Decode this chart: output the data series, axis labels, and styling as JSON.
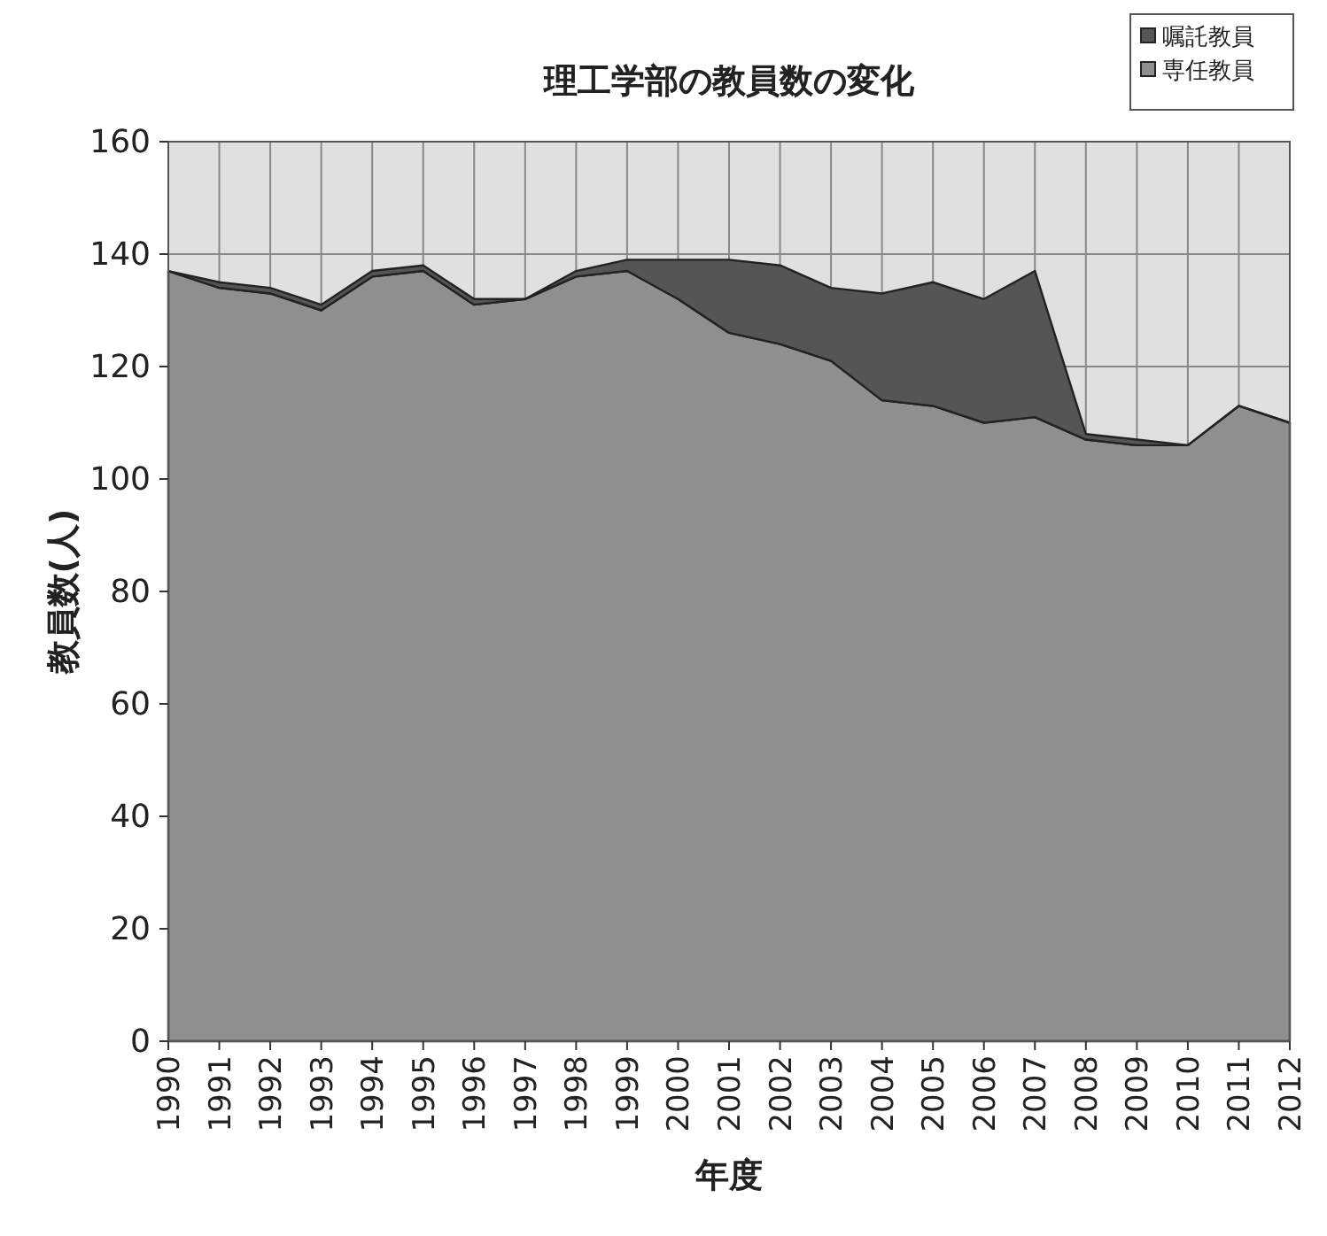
{
  "chart_data": {
    "type": "area",
    "stacked": true,
    "title": "理工学部の教員数の変化",
    "xlabel": "年度",
    "ylabel": "教員数(人)",
    "categories": [
      "1990",
      "1991",
      "1992",
      "1993",
      "1994",
      "1995",
      "1996",
      "1997",
      "1998",
      "1999",
      "2000",
      "2001",
      "2002",
      "2003",
      "2004",
      "2005",
      "2006",
      "2007",
      "2008",
      "2009",
      "2010",
      "2011",
      "2012"
    ],
    "series": [
      {
        "name": "専任教員",
        "color": "#8f8f8f",
        "values": [
          137,
          134,
          133,
          130,
          136,
          137,
          131,
          132,
          136,
          137,
          132,
          126,
          124,
          121,
          114,
          113,
          110,
          111,
          107,
          106,
          106,
          113,
          110
        ]
      },
      {
        "name": "嘱託教員",
        "color": "#555555",
        "values": [
          0,
          1,
          1,
          1,
          1,
          1,
          1,
          0,
          1,
          2,
          7,
          13,
          14,
          13,
          19,
          22,
          22,
          26,
          1,
          1,
          0,
          0,
          0
        ]
      }
    ],
    "ylim": [
      0,
      160
    ],
    "yticks": [
      0,
      20,
      40,
      60,
      80,
      100,
      120,
      140,
      160
    ],
    "grid": true,
    "legend": "top right"
  }
}
